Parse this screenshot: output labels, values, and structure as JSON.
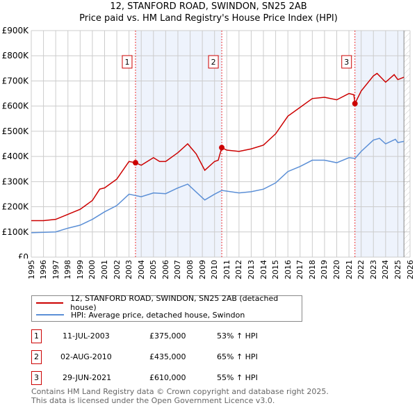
{
  "chart_data": {
    "type": "line",
    "title": "12, STANFORD ROAD, SWINDON, SN25 2AB",
    "subtitle": "Price paid vs. HM Land Registry's House Price Index (HPI)",
    "xlim": [
      1995,
      2026
    ],
    "ylim": [
      0,
      900000
    ],
    "yticks": [
      {
        "v": 0,
        "l": "£0"
      },
      {
        "v": 100000,
        "l": "£100K"
      },
      {
        "v": 200000,
        "l": "£200K"
      },
      {
        "v": 300000,
        "l": "£300K"
      },
      {
        "v": 400000,
        "l": "£400K"
      },
      {
        "v": 500000,
        "l": "£500K"
      },
      {
        "v": 600000,
        "l": "£600K"
      },
      {
        "v": 700000,
        "l": "£700K"
      },
      {
        "v": 800000,
        "l": "£800K"
      },
      {
        "v": 900000,
        "l": "£900K"
      }
    ],
    "xticks": [
      "1995",
      "1996",
      "1997",
      "1998",
      "1999",
      "2000",
      "2001",
      "2002",
      "2003",
      "2004",
      "2005",
      "2006",
      "2007",
      "2008",
      "2009",
      "2010",
      "2011",
      "2012",
      "2013",
      "2014",
      "2015",
      "2016",
      "2017",
      "2018",
      "2019",
      "2020",
      "2021",
      "2022",
      "2023",
      "2024",
      "2025",
      "2026"
    ],
    "grid": true,
    "data_end": 2025.5,
    "series": [
      {
        "name": "12, STANFORD ROAD, SWINDON, SN25 2AB (detached house)",
        "color": "#cc0000",
        "x": [
          1995,
          1996,
          1997,
          1998,
          1999,
          2000,
          2000.6,
          2001,
          2002,
          2003,
          2003.53,
          2004,
          2005,
          2005.5,
          2006,
          2007,
          2007.8,
          2008.5,
          2009.2,
          2010,
          2010.3,
          2010.59,
          2011,
          2012,
          2013,
          2014,
          2015,
          2016,
          2017,
          2018,
          2019,
          2020,
          2021,
          2021.4,
          2021.49,
          2022,
          2023,
          2023.3,
          2024,
          2024.7,
          2025,
          2025.5
        ],
        "y": [
          145,
          145,
          150,
          170,
          190,
          225,
          270,
          275,
          310,
          380,
          375,
          365,
          395,
          380,
          380,
          415,
          450,
          410,
          345,
          380,
          385,
          435,
          425,
          420,
          430,
          445,
          490,
          560,
          595,
          630,
          635,
          625,
          650,
          645,
          610,
          660,
          720,
          730,
          695,
          725,
          705,
          715
        ]
      },
      {
        "name": "HPI: Average price, detached house, Swindon",
        "color": "#5b8fd6",
        "x": [
          1995,
          1997,
          1998,
          1999,
          2000,
          2001,
          2002,
          2003,
          2004,
          2005,
          2006,
          2007,
          2007.8,
          2009.2,
          2010,
          2010.6,
          2012,
          2013,
          2014,
          2015,
          2016,
          2017,
          2018,
          2019,
          2020,
          2021,
          2021.5,
          2022,
          2023,
          2023.5,
          2024,
          2024.8,
          2025,
          2025.5
        ],
        "y": [
          97,
          100,
          115,
          127,
          150,
          180,
          205,
          250,
          240,
          255,
          252,
          275,
          290,
          227,
          250,
          265,
          255,
          260,
          270,
          295,
          340,
          360,
          385,
          385,
          375,
          395,
          392,
          420,
          465,
          472,
          450,
          468,
          455,
          460
        ]
      }
    ],
    "y_units": "thousands GBP",
    "sales": [
      {
        "n": "1",
        "x": 2003.53,
        "y": 375,
        "date": "11-JUL-2003",
        "price": "£375,000",
        "hpi": "53% ↑ HPI"
      },
      {
        "n": "2",
        "x": 2010.59,
        "y": 435,
        "date": "02-AUG-2010",
        "price": "£435,000",
        "hpi": "65% ↑ HPI"
      },
      {
        "n": "3",
        "x": 2021.49,
        "y": 610,
        "date": "29-JUN-2021",
        "price": "£610,000",
        "hpi": "55% ↑ HPI"
      }
    ],
    "legend_position": "below"
  },
  "footer": [
    "Contains HM Land Registry data © Crown copyright and database right 2025.",
    "This data is licensed under the Open Government Licence v3.0."
  ]
}
